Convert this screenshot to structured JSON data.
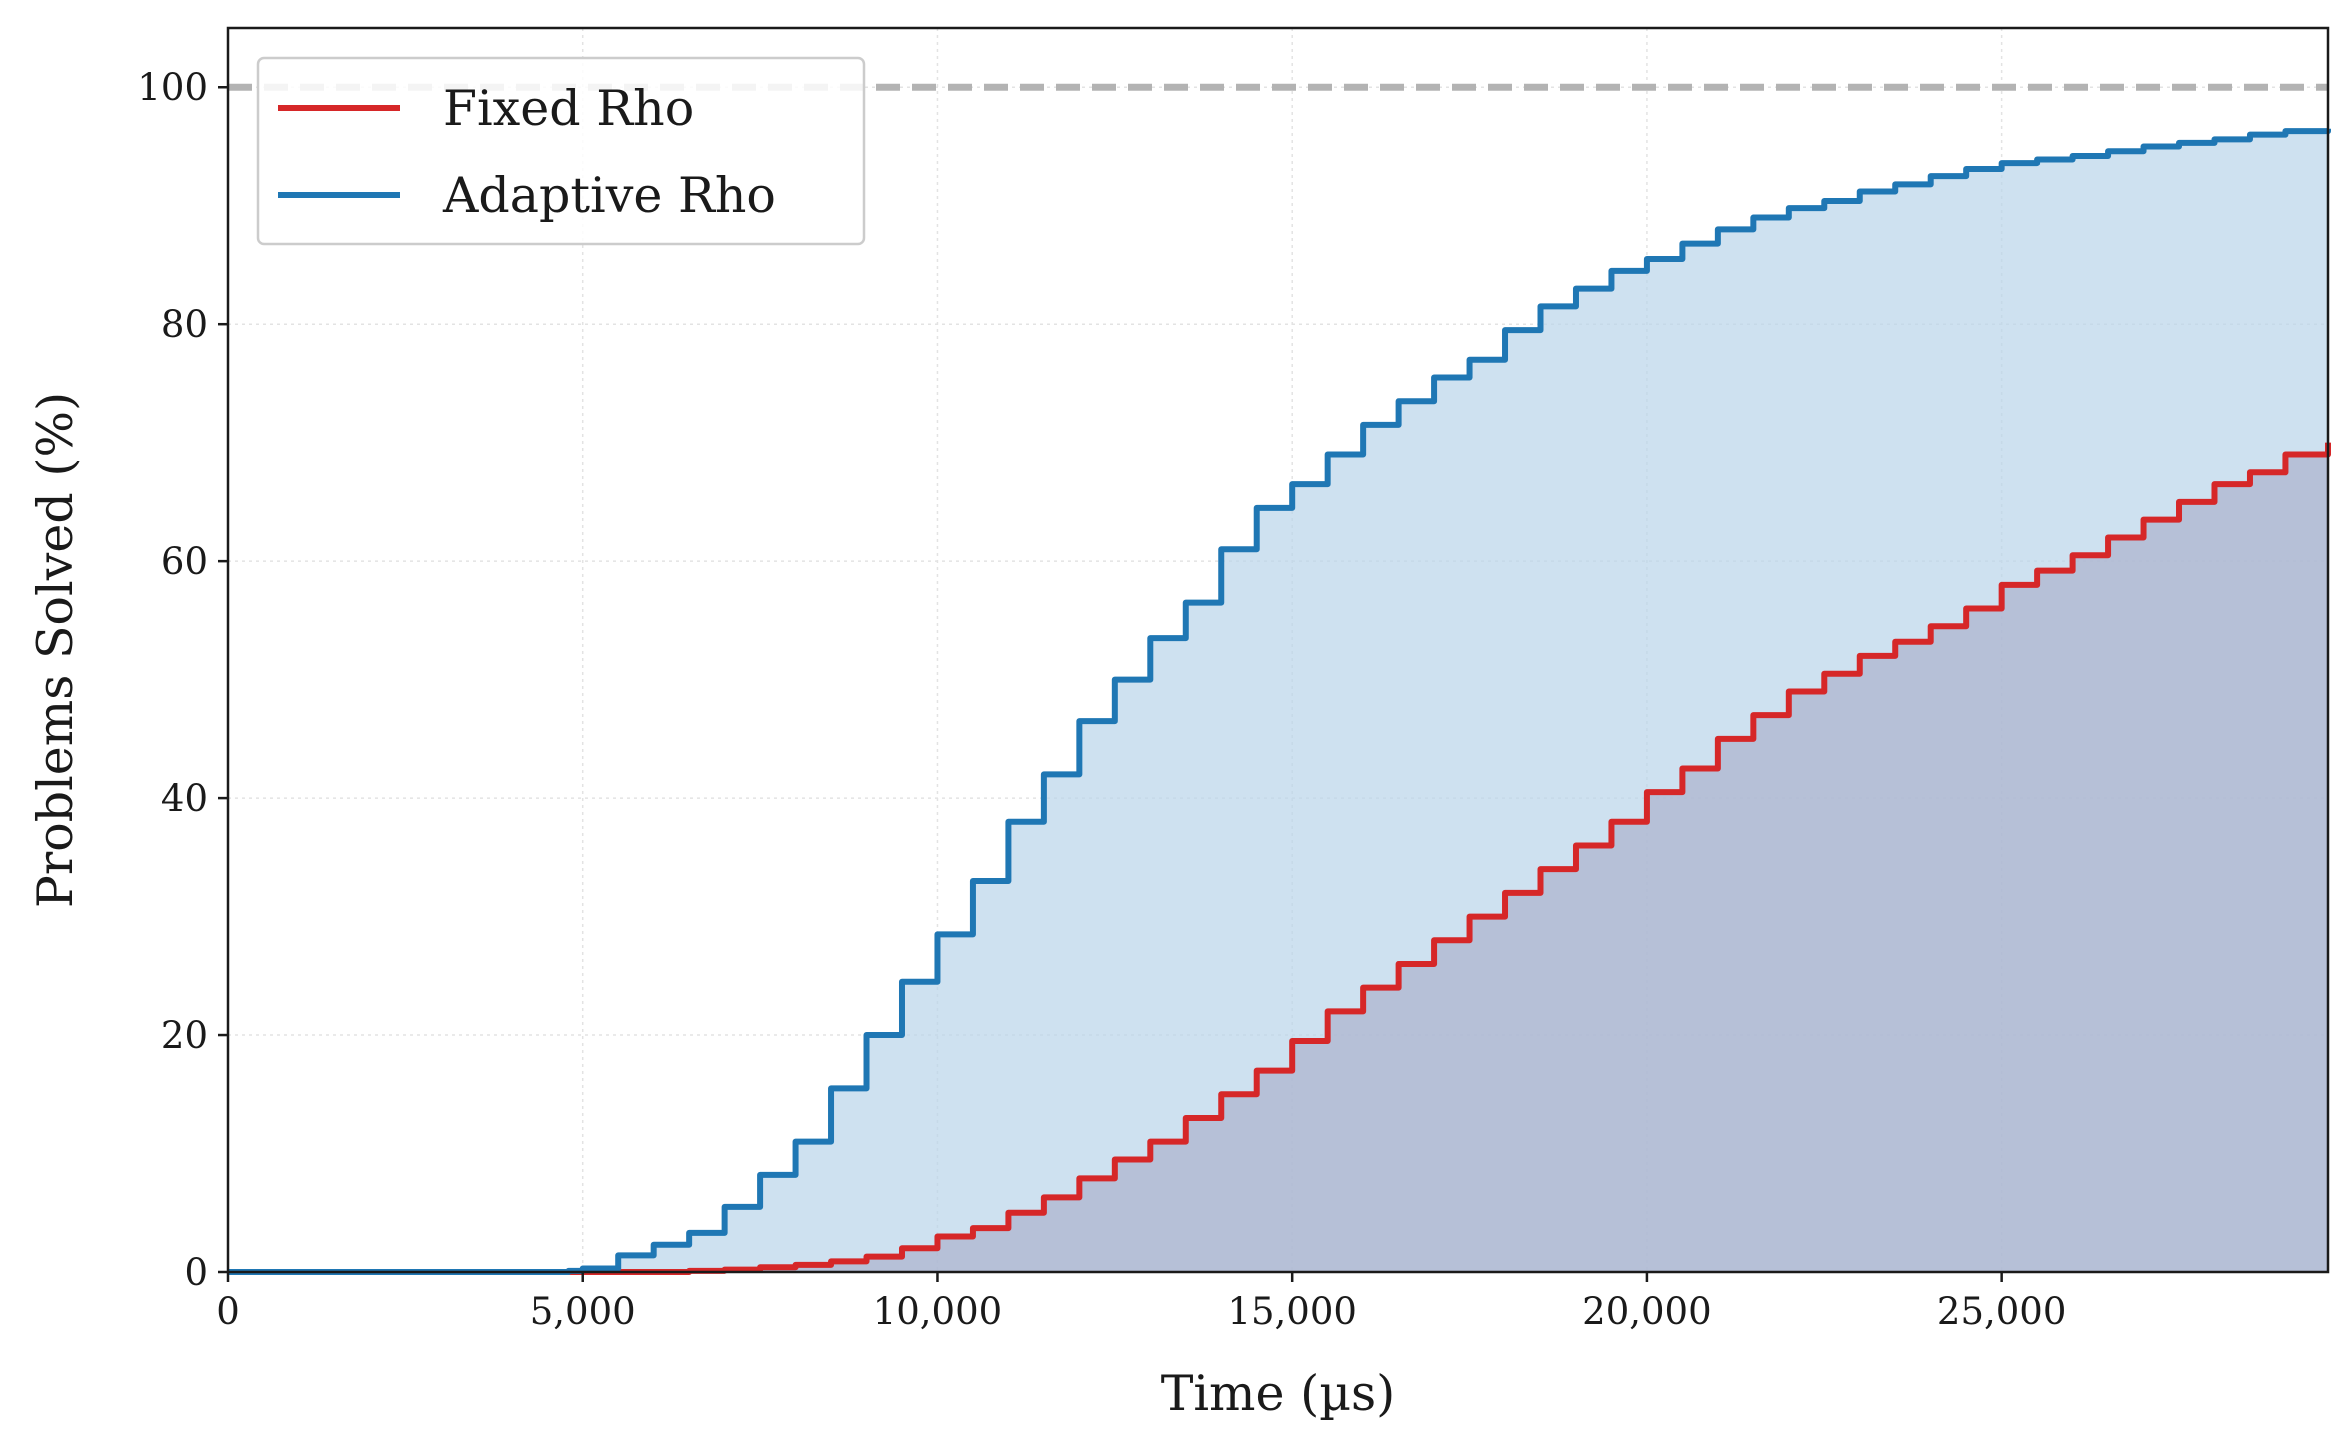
{
  "chart_data": {
    "type": "area",
    "xlabel": "Time (µs)",
    "ylabel": "Problems Solved (%)",
    "xlim": [
      0,
      29600
    ],
    "ylim": [
      0,
      105
    ],
    "x_ticks": [
      0,
      5000,
      10000,
      15000,
      20000,
      25000
    ],
    "x_tick_labels": [
      "0",
      "5,000",
      "10,000",
      "15,000",
      "20,000",
      "25,000"
    ],
    "y_ticks": [
      0,
      20,
      40,
      60,
      80,
      100
    ],
    "y_tick_labels": [
      "0",
      "20",
      "40",
      "60",
      "80",
      "100"
    ],
    "grid": true,
    "reference_line": {
      "y": 100,
      "style": "dashed",
      "color": "#b3b3b3"
    },
    "legend_position": "top-left",
    "series": [
      {
        "name": "Fixed Rho",
        "color": "#d62728",
        "fill_color": "#8c6189",
        "x": [
          0,
          5000,
          6000,
          6500,
          7000,
          7500,
          8000,
          8500,
          9000,
          9500,
          10000,
          10500,
          11000,
          11500,
          12000,
          12500,
          13000,
          13500,
          14000,
          14500,
          15000,
          15500,
          16000,
          16500,
          17000,
          17500,
          18000,
          18500,
          19000,
          19500,
          20000,
          20500,
          21000,
          21500,
          22000,
          22500,
          23000,
          23500,
          24000,
          24500,
          25000,
          25500,
          26000,
          26500,
          27000,
          27500,
          28000,
          28500,
          29000,
          29600
        ],
        "y": [
          0,
          0,
          0,
          0.1,
          0.2,
          0.4,
          0.6,
          0.9,
          1.3,
          2.0,
          3.0,
          3.7,
          5.0,
          6.3,
          7.9,
          9.5,
          11.0,
          13.0,
          15.0,
          17.0,
          19.5,
          22.0,
          24.0,
          26.0,
          28.0,
          30.0,
          32.0,
          34.0,
          36.0,
          38.0,
          40.5,
          42.5,
          45.0,
          47.0,
          49.0,
          50.5,
          52.0,
          53.2,
          54.5,
          56.0,
          58.0,
          59.2,
          60.5,
          62.0,
          63.5,
          65.0,
          66.5,
          67.5,
          69.0,
          70.0
        ]
      },
      {
        "name": "Adaptive Rho",
        "color": "#1f77b4",
        "fill_color": "#b9d4e9",
        "x": [
          0,
          4800,
          5000,
          5500,
          6000,
          6500,
          7000,
          7500,
          8000,
          8500,
          9000,
          9500,
          10000,
          10500,
          11000,
          11500,
          12000,
          12500,
          13000,
          13500,
          14000,
          14500,
          15000,
          15500,
          16000,
          16500,
          17000,
          17500,
          18000,
          18500,
          19000,
          19500,
          20000,
          20500,
          21000,
          21500,
          22000,
          22500,
          23000,
          23500,
          24000,
          24500,
          25000,
          25500,
          26000,
          26500,
          27000,
          27500,
          28000,
          28500,
          29000,
          29600
        ],
        "y": [
          0,
          0.1,
          0.3,
          1.4,
          2.3,
          3.3,
          5.5,
          8.2,
          11.0,
          15.5,
          20.0,
          24.5,
          28.5,
          33.0,
          38.0,
          42.0,
          46.5,
          50.0,
          53.5,
          56.5,
          61.0,
          64.5,
          66.5,
          69.0,
          71.5,
          73.5,
          75.5,
          77.0,
          79.5,
          81.5,
          83.0,
          84.5,
          85.5,
          86.8,
          88.0,
          89.0,
          89.8,
          90.4,
          91.2,
          91.8,
          92.5,
          93.1,
          93.6,
          93.9,
          94.2,
          94.6,
          95.0,
          95.3,
          95.6,
          96.0,
          96.3,
          96.5
        ]
      }
    ]
  }
}
